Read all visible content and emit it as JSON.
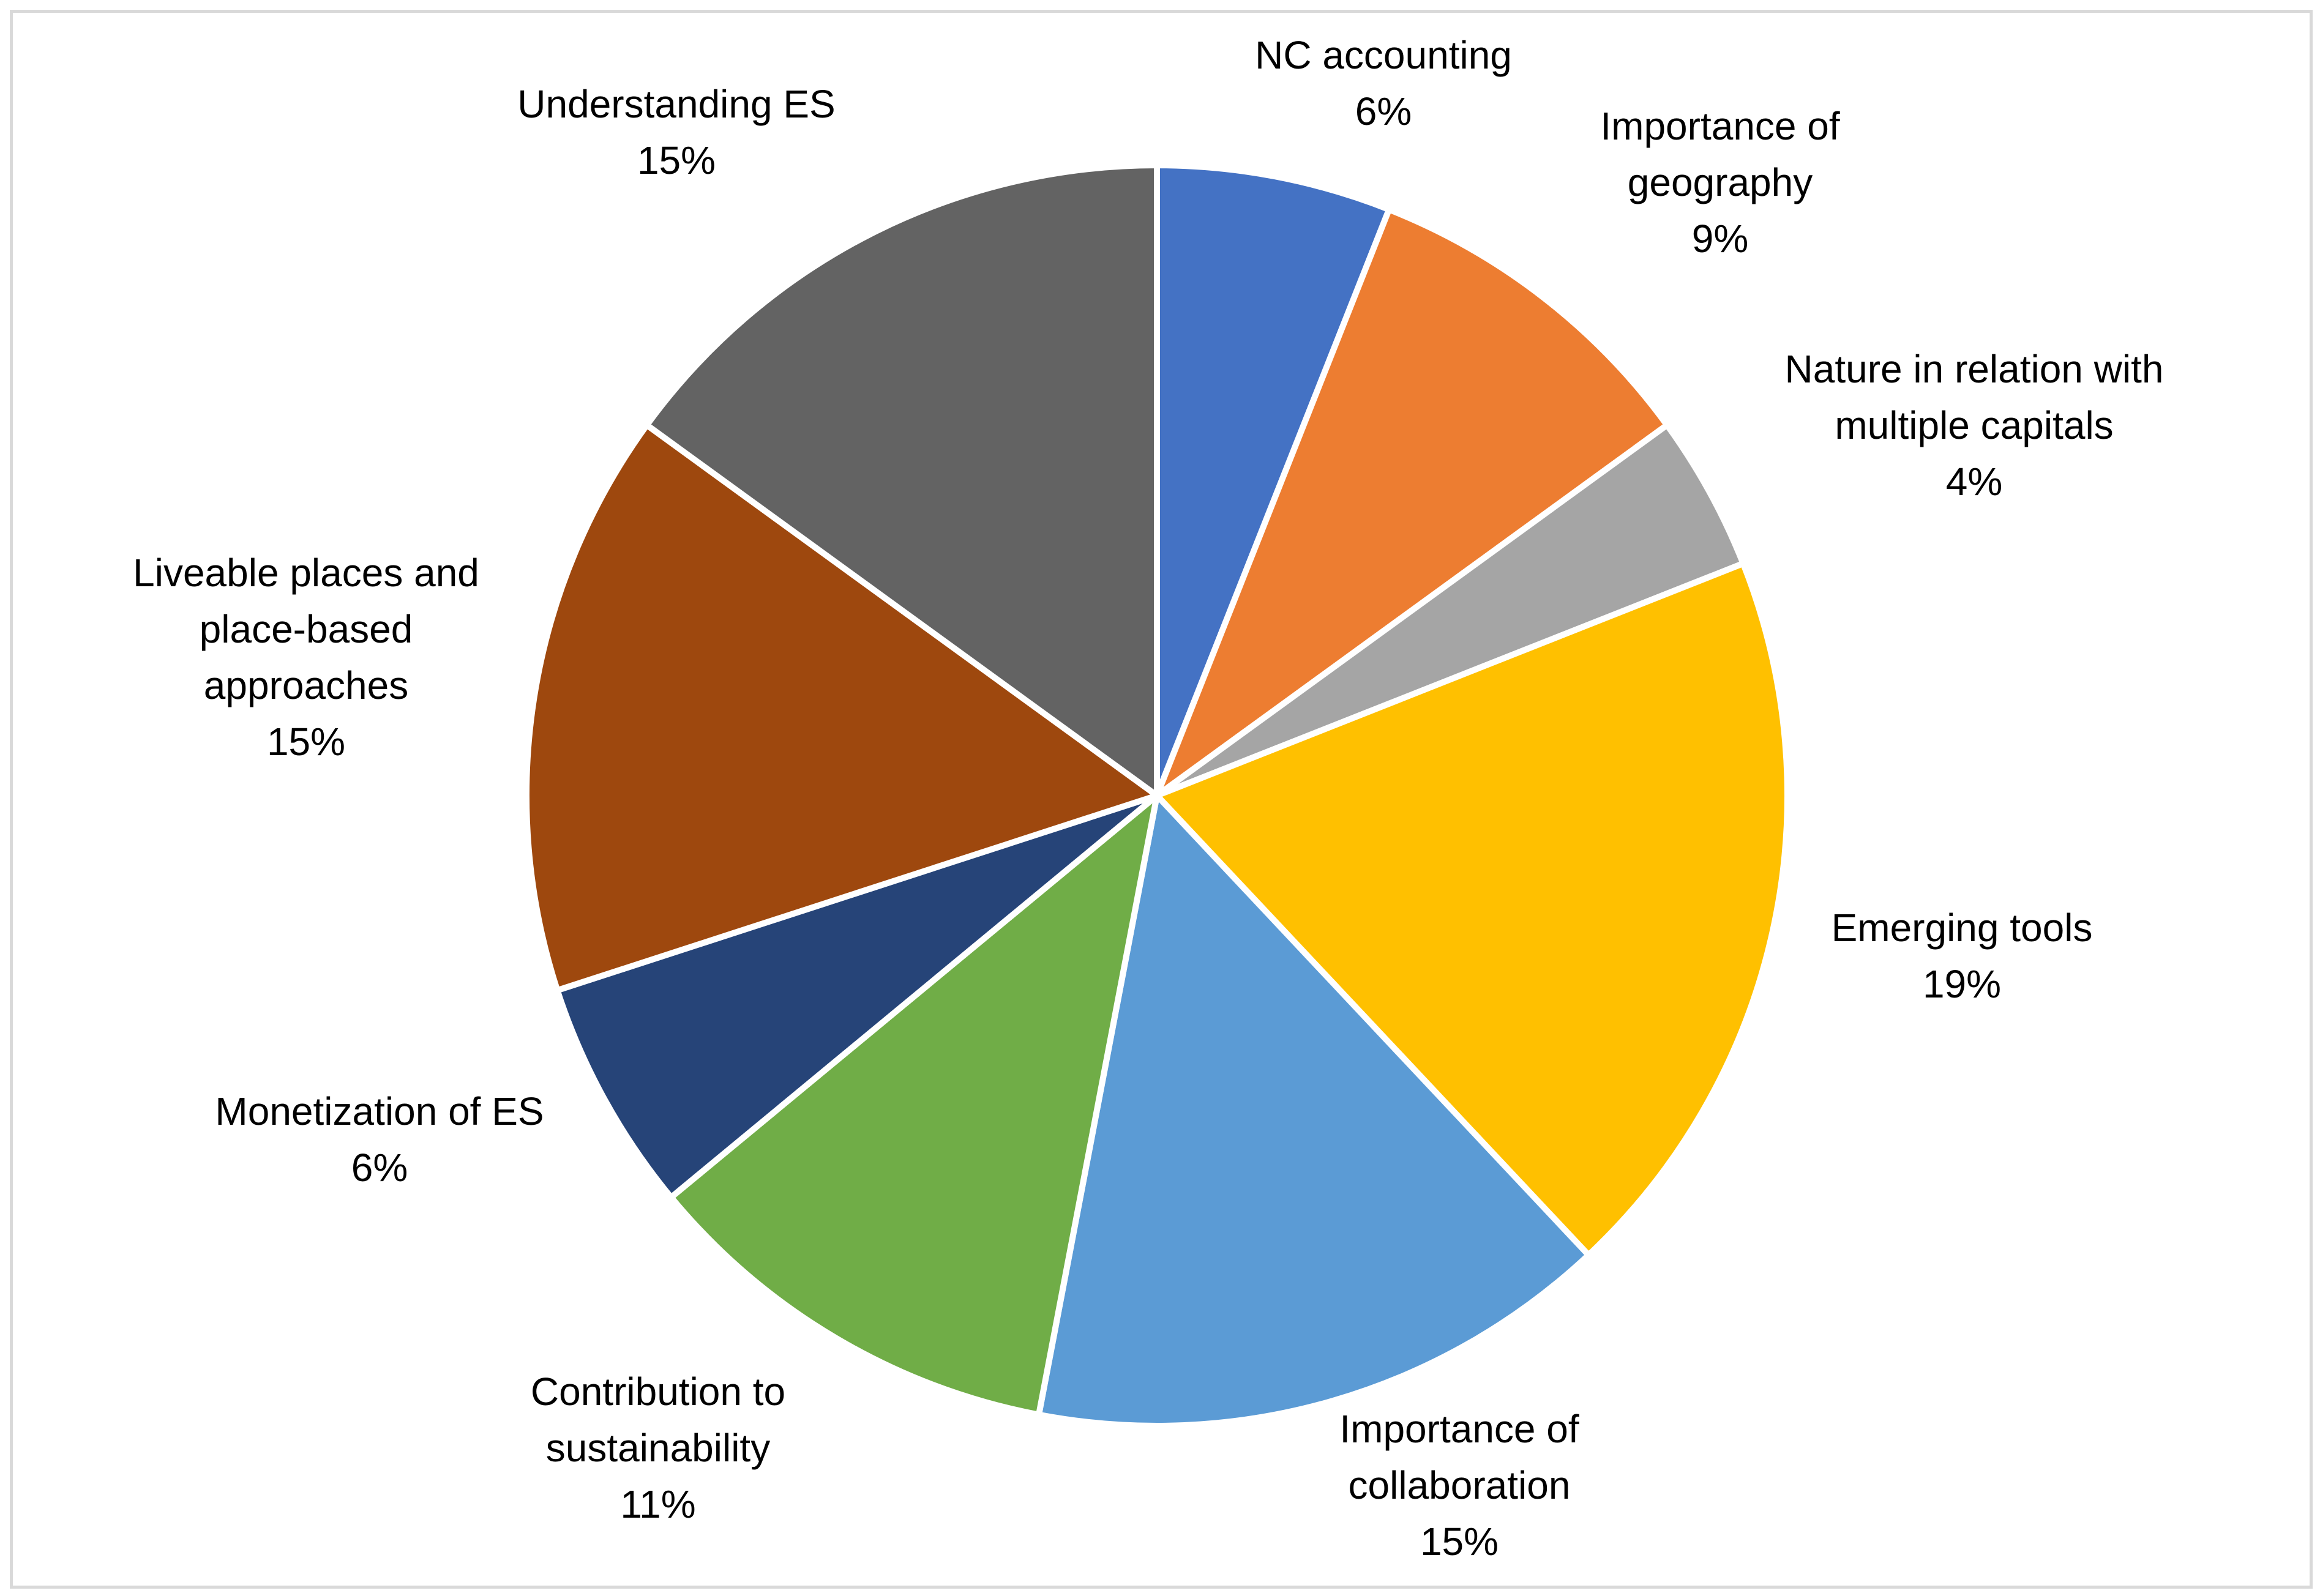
{
  "chart_data": {
    "type": "pie",
    "title": "",
    "slices": [
      {
        "label": [
          "NC accounting"
        ],
        "value": 6,
        "pct_label": "6%",
        "color": "#4472c4"
      },
      {
        "label": [
          "Importance of",
          "geography"
        ],
        "value": 9,
        "pct_label": "9%",
        "color": "#ed7d31"
      },
      {
        "label": [
          "Nature in relation with",
          "multiple capitals"
        ],
        "value": 4,
        "pct_label": "4%",
        "color": "#a5a5a5"
      },
      {
        "label": [
          "Emerging tools"
        ],
        "value": 19,
        "pct_label": "19%",
        "color": "#ffc000"
      },
      {
        "label": [
          "Importance of",
          "collaboration"
        ],
        "value": 15,
        "pct_label": "15%",
        "color": "#5b9bd5"
      },
      {
        "label": [
          "Contribution to",
          "sustainability"
        ],
        "value": 11,
        "pct_label": "11%",
        "color": "#70ad47"
      },
      {
        "label": [
          "Monetization of ES"
        ],
        "value": 6,
        "pct_label": "6%",
        "color": "#264478"
      },
      {
        "label": [
          "Liveable places and",
          "place-based",
          "approaches"
        ],
        "value": 15,
        "pct_label": "15%",
        "color": "#9e480e"
      },
      {
        "label": [
          "Understanding ES"
        ],
        "value": 15,
        "pct_label": "15%",
        "color": "#636363"
      }
    ]
  }
}
